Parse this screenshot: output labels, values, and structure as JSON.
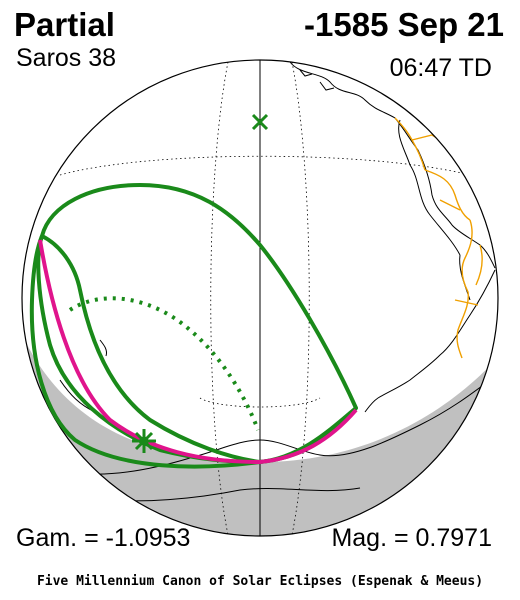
{
  "header": {
    "eclipse_type": "Partial",
    "date": "-1585 Sep 21",
    "saros": "Saros  38",
    "time": "06:47 TD"
  },
  "footer": {
    "gamma": "Gam. = -1.0953",
    "magnitude": "Mag. = 0.7971",
    "credit": "Five Millennium Canon of Solar Eclipses (Espenak & Meeus)"
  },
  "colors": {
    "path_outline": "#1a8a1a",
    "max_eclipse_line": "#e0148c",
    "night_shade": "#c0c0c0",
    "borders": "#f0a000",
    "coast": "#000000"
  },
  "markers": {
    "greatest_eclipse": "star-marker",
    "sub_solar": "x-marker"
  }
}
